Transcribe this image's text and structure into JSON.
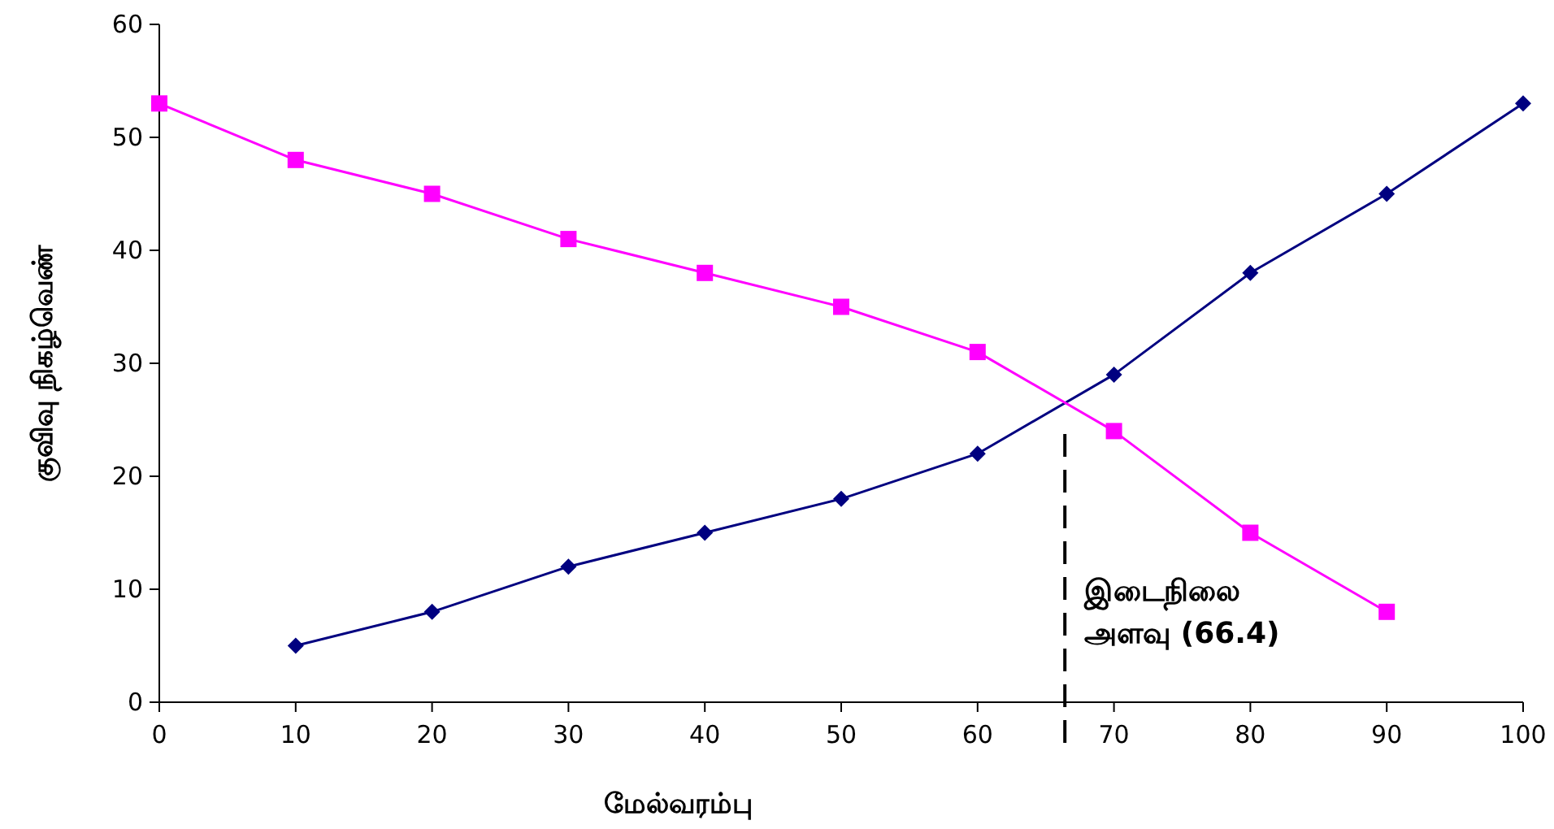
{
  "chart_data": {
    "type": "line",
    "xlabel": "மேல்வரம்பு",
    "ylabel": "குவிவு நிகழ்வெண்",
    "xlim": [
      0,
      100
    ],
    "xticks": [
      0,
      10,
      20,
      30,
      40,
      50,
      60,
      70,
      80,
      90,
      100
    ],
    "ylim": [
      0,
      60
    ],
    "yticks": [
      0,
      10,
      20,
      30,
      40,
      50,
      60
    ],
    "series": [
      {
        "color": "#000080",
        "marker": "diamond",
        "x": [
          10,
          20,
          30,
          40,
          50,
          60,
          70,
          80,
          90,
          100
        ],
        "values": [
          5,
          8,
          12,
          15,
          18,
          22,
          29,
          38,
          45,
          53
        ]
      },
      {
        "color": "#ff00ff",
        "marker": "square",
        "x": [
          0,
          10,
          20,
          30,
          40,
          50,
          60,
          70,
          80,
          90
        ],
        "values": [
          53,
          48,
          45,
          41,
          38,
          35,
          31,
          24,
          15,
          8
        ]
      }
    ],
    "ref_lines": [
      {
        "axis": "x",
        "value": 66.4,
        "label": "இடைநிலை\nஅளவு (66.4)",
        "color": "#000000",
        "line_style": "dashed"
      }
    ],
    "grid": false
  }
}
